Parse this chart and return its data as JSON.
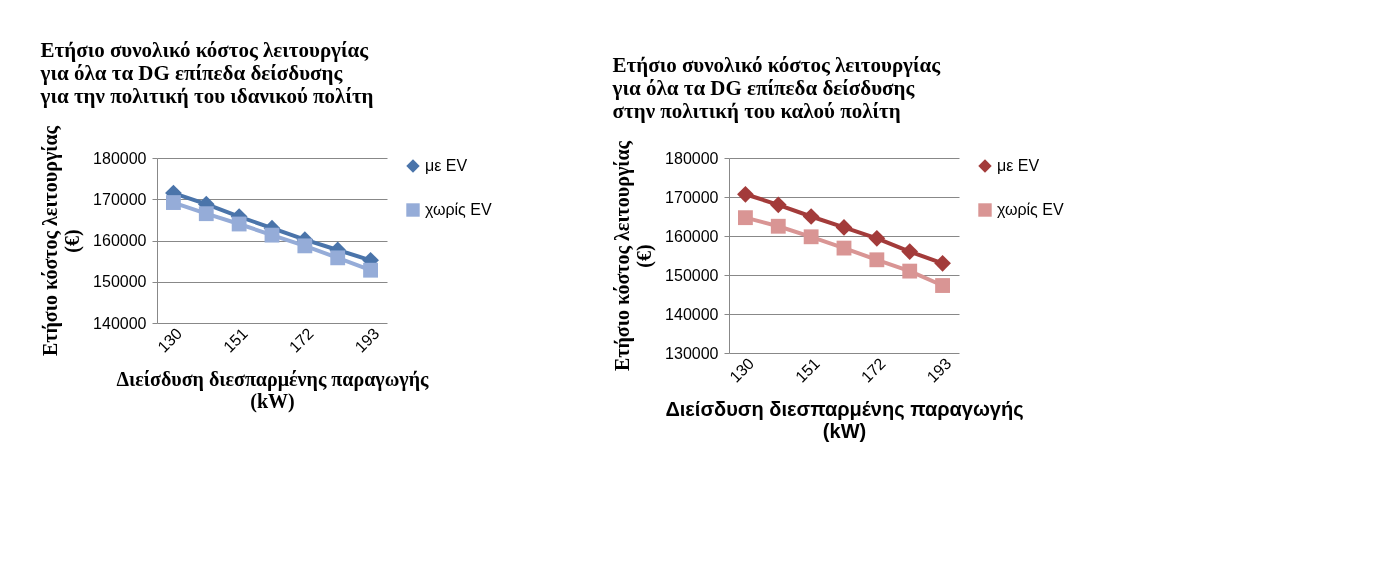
{
  "chart_data": [
    {
      "type": "line",
      "title": "Ετήσιο συνολικό κόστος λειτουργίας\nγια όλα τα DG επίπεδα δείσδυσης\nγια την πολιτική του ιδανικού πολίτη",
      "xlabel": "Διείσδυση διεσπαρμένης παραγωγής\n(kW)",
      "ylabel": "Ετήσιο κόστος λειτουργίας\n(€)",
      "categories": [
        "130",
        null,
        "151",
        null,
        "172",
        null,
        "193"
      ],
      "series": [
        {
          "name": "με EV",
          "color": "#4a74aa",
          "marker": "diamond",
          "values": [
            171500,
            168800,
            165800,
            163000,
            160200,
            157700,
            155200
          ]
        },
        {
          "name": "χωρίς EV",
          "color": "#95acd8",
          "marker": "square",
          "values": [
            169200,
            166500,
            164000,
            161300,
            158700,
            155800,
            152800
          ]
        }
      ],
      "ylim": [
        140000,
        180000
      ],
      "yticks": [
        140000,
        150000,
        160000,
        170000,
        180000
      ],
      "grid": "y",
      "legend": "right"
    },
    {
      "type": "line",
      "title": "Ετήσιο συνολικό κόστος λειτουργίας\nγια όλα τα DG επίπεδα δείσδυσης\nστην πολιτική του καλού πολίτη",
      "xlabel": "Διείσδυση διεσπαρμένης παραγωγής\n(kW)",
      "ylabel": "Ετήσιο κόστος λειτουργίας\n(€)",
      "categories": [
        "130",
        null,
        "151",
        null,
        "172",
        null,
        "193"
      ],
      "series": [
        {
          "name": "με EV",
          "color": "#a33b3a",
          "marker": "diamond",
          "values": [
            170700,
            168000,
            165000,
            162200,
            159400,
            156000,
            153000
          ]
        },
        {
          "name": "χωρίς EV",
          "color": "#d99594",
          "marker": "square",
          "values": [
            164700,
            162500,
            159800,
            156900,
            153900,
            151000,
            147300
          ]
        }
      ],
      "ylim": [
        130000,
        180000
      ],
      "yticks": [
        130000,
        140000,
        150000,
        160000,
        170000,
        180000
      ],
      "grid": "y",
      "legend": "right"
    }
  ]
}
